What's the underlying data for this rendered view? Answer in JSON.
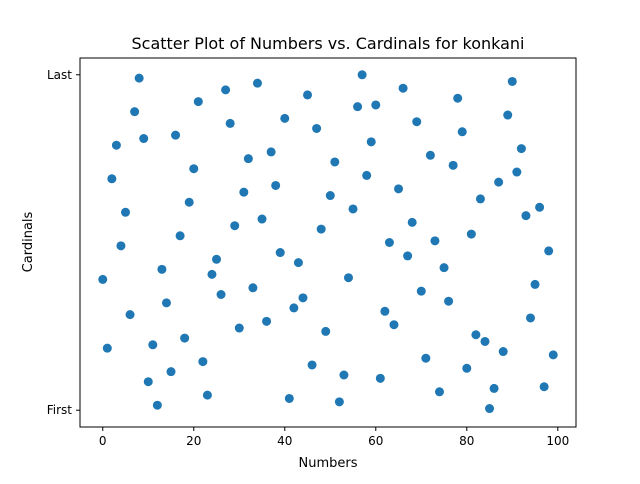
{
  "chart_data": {
    "type": "scatter",
    "title": "Scatter Plot of Numbers vs. Cardinals for konkani",
    "xlabel": "Numbers",
    "ylabel": "Cardinals",
    "xlim": [
      -5,
      104
    ],
    "ylim": [
      -0.05,
      1.05
    ],
    "x_ticks": [
      0,
      20,
      40,
      60,
      80,
      100
    ],
    "y_ticks": [
      {
        "value": 0,
        "label": "First"
      },
      {
        "value": 1,
        "label": "Last"
      }
    ],
    "grid": false,
    "marker_color": "#1f77b4",
    "points": [
      {
        "x": 0,
        "y": 0.39
      },
      {
        "x": 1,
        "y": 0.185
      },
      {
        "x": 2,
        "y": 0.69
      },
      {
        "x": 3,
        "y": 0.79
      },
      {
        "x": 4,
        "y": 0.49
      },
      {
        "x": 5,
        "y": 0.59
      },
      {
        "x": 6,
        "y": 0.285
      },
      {
        "x": 7,
        "y": 0.89
      },
      {
        "x": 8,
        "y": 0.99
      },
      {
        "x": 9,
        "y": 0.81
      },
      {
        "x": 10,
        "y": 0.085
      },
      {
        "x": 11,
        "y": 0.195
      },
      {
        "x": 12,
        "y": 0.015
      },
      {
        "x": 13,
        "y": 0.42
      },
      {
        "x": 14,
        "y": 0.32
      },
      {
        "x": 15,
        "y": 0.115
      },
      {
        "x": 16,
        "y": 0.82
      },
      {
        "x": 17,
        "y": 0.52
      },
      {
        "x": 18,
        "y": 0.215
      },
      {
        "x": 19,
        "y": 0.62
      },
      {
        "x": 20,
        "y": 0.72
      },
      {
        "x": 21,
        "y": 0.92
      },
      {
        "x": 22,
        "y": 0.145
      },
      {
        "x": 23,
        "y": 0.045
      },
      {
        "x": 24,
        "y": 0.405
      },
      {
        "x": 25,
        "y": 0.45
      },
      {
        "x": 26,
        "y": 0.345
      },
      {
        "x": 27,
        "y": 0.955
      },
      {
        "x": 28,
        "y": 0.855
      },
      {
        "x": 29,
        "y": 0.55
      },
      {
        "x": 30,
        "y": 0.245
      },
      {
        "x": 31,
        "y": 0.65
      },
      {
        "x": 32,
        "y": 0.75
      },
      {
        "x": 33,
        "y": 0.365
      },
      {
        "x": 34,
        "y": 0.975
      },
      {
        "x": 35,
        "y": 0.57
      },
      {
        "x": 36,
        "y": 0.265
      },
      {
        "x": 37,
        "y": 0.77
      },
      {
        "x": 38,
        "y": 0.67
      },
      {
        "x": 39,
        "y": 0.47
      },
      {
        "x": 40,
        "y": 0.87
      },
      {
        "x": 41,
        "y": 0.035
      },
      {
        "x": 42,
        "y": 0.305
      },
      {
        "x": 43,
        "y": 0.44
      },
      {
        "x": 44,
        "y": 0.335
      },
      {
        "x": 45,
        "y": 0.94
      },
      {
        "x": 46,
        "y": 0.135
      },
      {
        "x": 47,
        "y": 0.84
      },
      {
        "x": 48,
        "y": 0.54
      },
      {
        "x": 49,
        "y": 0.235
      },
      {
        "x": 50,
        "y": 0.64
      },
      {
        "x": 51,
        "y": 0.74
      },
      {
        "x": 52,
        "y": 0.025
      },
      {
        "x": 53,
        "y": 0.105
      },
      {
        "x": 54,
        "y": 0.395
      },
      {
        "x": 55,
        "y": 0.6
      },
      {
        "x": 56,
        "y": 0.905
      },
      {
        "x": 57,
        "y": 1.0
      },
      {
        "x": 58,
        "y": 0.7
      },
      {
        "x": 59,
        "y": 0.8
      },
      {
        "x": 60,
        "y": 0.91
      },
      {
        "x": 61,
        "y": 0.095
      },
      {
        "x": 62,
        "y": 0.295
      },
      {
        "x": 63,
        "y": 0.5
      },
      {
        "x": 64,
        "y": 0.255
      },
      {
        "x": 65,
        "y": 0.66
      },
      {
        "x": 66,
        "y": 0.96
      },
      {
        "x": 67,
        "y": 0.46
      },
      {
        "x": 68,
        "y": 0.56
      },
      {
        "x": 69,
        "y": 0.86
      },
      {
        "x": 70,
        "y": 0.355
      },
      {
        "x": 71,
        "y": 0.155
      },
      {
        "x": 72,
        "y": 0.76
      },
      {
        "x": 73,
        "y": 0.505
      },
      {
        "x": 74,
        "y": 0.055
      },
      {
        "x": 75,
        "y": 0.425
      },
      {
        "x": 76,
        "y": 0.325
      },
      {
        "x": 77,
        "y": 0.73
      },
      {
        "x": 78,
        "y": 0.93
      },
      {
        "x": 79,
        "y": 0.83
      },
      {
        "x": 80,
        "y": 0.125
      },
      {
        "x": 81,
        "y": 0.525
      },
      {
        "x": 82,
        "y": 0.225
      },
      {
        "x": 83,
        "y": 0.63
      },
      {
        "x": 84,
        "y": 0.205
      },
      {
        "x": 85,
        "y": 0.005
      },
      {
        "x": 86,
        "y": 0.065
      },
      {
        "x": 87,
        "y": 0.68
      },
      {
        "x": 88,
        "y": 0.175
      },
      {
        "x": 89,
        "y": 0.88
      },
      {
        "x": 90,
        "y": 0.98
      },
      {
        "x": 91,
        "y": 0.71
      },
      {
        "x": 92,
        "y": 0.78
      },
      {
        "x": 93,
        "y": 0.58
      },
      {
        "x": 94,
        "y": 0.275
      },
      {
        "x": 95,
        "y": 0.375
      },
      {
        "x": 96,
        "y": 0.605
      },
      {
        "x": 97,
        "y": 0.07
      },
      {
        "x": 98,
        "y": 0.475
      },
      {
        "x": 99,
        "y": 0.165
      }
    ]
  }
}
